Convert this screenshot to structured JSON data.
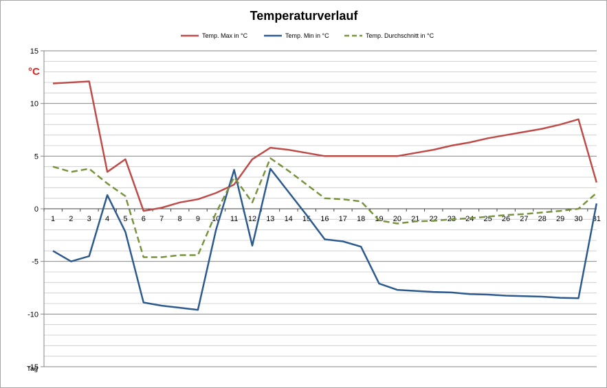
{
  "chart_data": {
    "type": "line",
    "title": "Temperaturverlauf",
    "xlabel": "Tag",
    "ylabel": "°C",
    "ylim": [
      -15,
      15
    ],
    "y_ticks": [
      15,
      10,
      5,
      0,
      -5,
      -10,
      -15
    ],
    "y_tick_labels": [
      "15",
      "10",
      "5",
      "0",
      "-5",
      "-10",
      "-15"
    ],
    "x": [
      "1",
      "2",
      "3",
      "4",
      "5",
      "6",
      "7",
      "8",
      "9",
      "10",
      "11",
      "12",
      "13",
      "14",
      "15",
      "16",
      "17",
      "18",
      "19",
      "20",
      "21",
      "22",
      "23",
      "24",
      "25",
      "26",
      "27",
      "28",
      "29",
      "30",
      "31"
    ],
    "grid": "horizontal",
    "legend_position": "top",
    "series": [
      {
        "name": "Temp. Max in °C",
        "color": "#be4b48",
        "dash": "solid",
        "values": [
          11.9,
          12.0,
          12.1,
          3.5,
          4.7,
          -0.2,
          0.1,
          0.6,
          0.9,
          1.5,
          2.3,
          4.7,
          5.8,
          5.6,
          5.3,
          5.0,
          5.0,
          5.0,
          5.0,
          5.0,
          5.3,
          5.6,
          6.0,
          6.3,
          6.7,
          7.0,
          7.3,
          7.6,
          8.0,
          8.5,
          2.5
        ]
      },
      {
        "name": "Temp. Min in °C",
        "color": "#2c5a8e",
        "dash": "solid",
        "values": [
          -4.0,
          -5.0,
          -4.5,
          1.3,
          -2.2,
          -8.9,
          -9.2,
          -9.4,
          -9.6,
          -2.0,
          3.7,
          -3.5,
          3.8,
          1.6,
          -0.6,
          -2.9,
          -3.1,
          -3.6,
          -7.1,
          -7.7,
          -7.8,
          -7.9,
          -7.95,
          -8.1,
          -8.15,
          -8.25,
          -8.3,
          -8.35,
          -8.45,
          -8.5,
          0.5
        ]
      },
      {
        "name": "Temp. Durchschnitt in °C",
        "color": "#77933c",
        "dash": "dashed",
        "values": [
          4.0,
          3.5,
          3.8,
          2.4,
          1.2,
          -4.6,
          -4.6,
          -4.4,
          -4.4,
          -0.4,
          3.0,
          0.6,
          4.8,
          3.6,
          2.3,
          1.0,
          0.9,
          0.7,
          -1.1,
          -1.4,
          -1.2,
          -1.15,
          -1.0,
          -0.9,
          -0.75,
          -0.6,
          -0.5,
          -0.35,
          -0.2,
          0.0,
          1.5
        ]
      }
    ]
  }
}
